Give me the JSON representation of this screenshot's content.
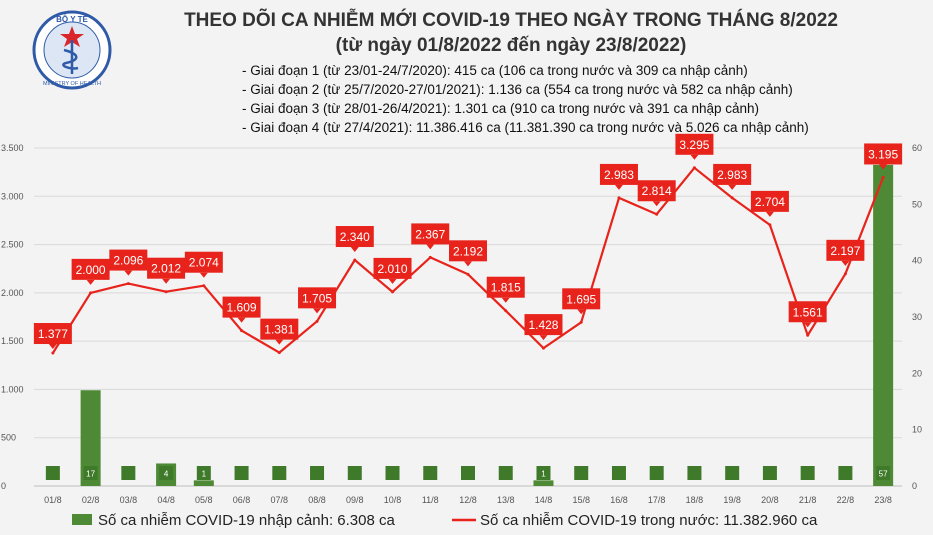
{
  "header": {
    "title": "THEO DÕI CA NHIỄM MỚI COVID-19 THEO NGÀY TRONG THÁNG 8/2022",
    "subtitle": "(từ ngày 01/8/2022 đến ngày 23/8/2022)",
    "notes": [
      "- Giai đoạn 1 (từ 23/01-24/7/2020): 415 ca (106 ca trong nước và 309 ca nhập cảnh)",
      "- Giai đoạn 2 (từ 25/7/2020-27/01/2021): 1.136 ca (554 ca trong nước và 582 ca nhập cảnh)",
      "- Giai đoạn 3 (từ 28/01-26/4/2021): 1.301 ca (910 ca trong nước và 391 ca nhập cảnh)",
      "- Giai đoạn 4 (từ 27/4/2021): 11.386.416 ca (11.381.390 ca trong nước và 5.026 ca nhập cảnh)"
    ]
  },
  "logo": {
    "top_text": "BỘ Y TẾ",
    "bottom_text": "MINISTRY OF HEALTH"
  },
  "colors": {
    "bar": "#4e8a35",
    "bar_label_bg": "#3f7a2a",
    "line": "#e8231b",
    "label_bg": "#e8231b",
    "grid": "#d9d9d9"
  },
  "chart_data": {
    "type": "bar+line",
    "categories": [
      "01/8",
      "02/8",
      "03/8",
      "04/8",
      "05/8",
      "06/8",
      "07/8",
      "08/8",
      "09/8",
      "10/8",
      "11/8",
      "12/8",
      "13/8",
      "14/8",
      "15/8",
      "16/8",
      "17/8",
      "18/8",
      "19/8",
      "20/8",
      "21/8",
      "22/8",
      "23/8"
    ],
    "left_axis": {
      "ylim": [
        0,
        3500
      ],
      "ticks": [
        0,
        500,
        1000,
        1500,
        2000,
        2500,
        3000,
        3500
      ],
      "tick_labels": [
        "0",
        "500",
        "1.000",
        "1.500",
        "2.000",
        "2.500",
        "3.000",
        "3.500"
      ]
    },
    "right_axis": {
      "ylim": [
        0,
        60
      ],
      "ticks": [
        0,
        10,
        20,
        30,
        40,
        50,
        60
      ],
      "tick_labels": [
        "0",
        "10",
        "20",
        "30",
        "40",
        "50",
        "60"
      ]
    },
    "series": [
      {
        "name": "Số ca nhiễm COVID-19 nhập cảnh: 6.308 ca",
        "type": "bar",
        "axis": "right",
        "values": [
          0,
          17,
          0,
          4,
          1,
          0,
          0,
          0,
          0,
          0,
          0,
          0,
          0,
          1,
          0,
          0,
          0,
          0,
          0,
          0,
          0,
          0,
          57
        ],
        "labels": [
          "",
          "17",
          "",
          "4",
          "1",
          "",
          "",
          "",
          "",
          "",
          "",
          "",
          "",
          "1",
          "",
          "",
          "",
          "",
          "",
          "",
          "",
          "",
          "57"
        ]
      },
      {
        "name": "Số ca nhiễm COVID-19 trong nước: 11.382.960 ca",
        "type": "line",
        "axis": "left",
        "values": [
          1377,
          2000,
          2096,
          2012,
          2074,
          1609,
          1381,
          1705,
          2340,
          2010,
          2367,
          2192,
          1815,
          1428,
          1695,
          2983,
          2814,
          3295,
          2983,
          2704,
          1561,
          2197,
          3195
        ],
        "labels": [
          "1.377",
          "2.000",
          "2.096",
          "2.012",
          "2.074",
          "1.609",
          "1.381",
          "1.705",
          "2.340",
          "2.010",
          "2.367",
          "2.192",
          "1.815",
          "1.428",
          "1.695",
          "2.983",
          "2.814",
          "3.295",
          "2.983",
          "2.704",
          "1.561",
          "2.197",
          "3.195"
        ]
      }
    ]
  }
}
